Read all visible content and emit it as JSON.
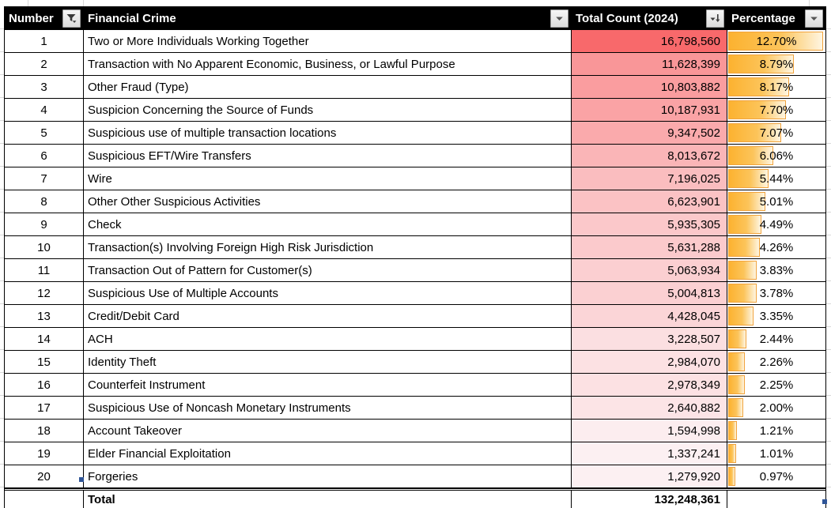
{
  "table": {
    "columns": [
      {
        "label": "Number",
        "icon": "filter-funnel-icon"
      },
      {
        "label": "Financial Crime",
        "icon": "chevron-down-icon"
      },
      {
        "label": "Total Count (2024)",
        "icon": "sort-descending-icon"
      },
      {
        "label": "Percentage",
        "icon": "chevron-down-icon"
      }
    ],
    "rows": [
      {
        "number": "1",
        "crime": "Two or More Individuals Working Together",
        "count": "16,798,560",
        "count_value": 16798560,
        "pct": "12.70%",
        "pct_value": 12.7
      },
      {
        "number": "2",
        "crime": "Transaction with No Apparent Economic, Business, or Lawful Purpose",
        "count": "11,628,399",
        "count_value": 11628399,
        "pct": "8.79%",
        "pct_value": 8.79
      },
      {
        "number": "3",
        "crime": "Other Fraud (Type)",
        "count": "10,803,882",
        "count_value": 10803882,
        "pct": "8.17%",
        "pct_value": 8.17
      },
      {
        "number": "4",
        "crime": "Suspicion Concerning the Source of Funds",
        "count": "10,187,931",
        "count_value": 10187931,
        "pct": "7.70%",
        "pct_value": 7.7
      },
      {
        "number": "5",
        "crime": "Suspicious use of multiple transaction locations",
        "count": "9,347,502",
        "count_value": 9347502,
        "pct": "7.07%",
        "pct_value": 7.07
      },
      {
        "number": "6",
        "crime": "Suspicious EFT/Wire Transfers",
        "count": "8,013,672",
        "count_value": 8013672,
        "pct": "6.06%",
        "pct_value": 6.06
      },
      {
        "number": "7",
        "crime": "Wire",
        "count": "7,196,025",
        "count_value": 7196025,
        "pct": "5.44%",
        "pct_value": 5.44
      },
      {
        "number": "8",
        "crime": "Other Other Suspicious Activities",
        "count": "6,623,901",
        "count_value": 6623901,
        "pct": "5.01%",
        "pct_value": 5.01
      },
      {
        "number": "9",
        "crime": "Check",
        "count": "5,935,305",
        "count_value": 5935305,
        "pct": "4.49%",
        "pct_value": 4.49
      },
      {
        "number": "10",
        "crime": "Transaction(s) Involving Foreign High Risk Jurisdiction",
        "count": "5,631,288",
        "count_value": 5631288,
        "pct": "4.26%",
        "pct_value": 4.26
      },
      {
        "number": "11",
        "crime": "Transaction Out of Pattern for Customer(s)",
        "count": "5,063,934",
        "count_value": 5063934,
        "pct": "3.83%",
        "pct_value": 3.83
      },
      {
        "number": "12",
        "crime": "Suspicious Use of Multiple Accounts",
        "count": "5,004,813",
        "count_value": 5004813,
        "pct": "3.78%",
        "pct_value": 3.78
      },
      {
        "number": "13",
        "crime": "Credit/Debit Card",
        "count": "4,428,045",
        "count_value": 4428045,
        "pct": "3.35%",
        "pct_value": 3.35
      },
      {
        "number": "14",
        "crime": "ACH",
        "count": "3,228,507",
        "count_value": 3228507,
        "pct": "2.44%",
        "pct_value": 2.44
      },
      {
        "number": "15",
        "crime": "Identity Theft",
        "count": "2,984,070",
        "count_value": 2984070,
        "pct": "2.26%",
        "pct_value": 2.26
      },
      {
        "number": "16",
        "crime": "Counterfeit Instrument",
        "count": "2,978,349",
        "count_value": 2978349,
        "pct": "2.25%",
        "pct_value": 2.25
      },
      {
        "number": "17",
        "crime": "Suspicious Use of Noncash Monetary Instruments",
        "count": "2,640,882",
        "count_value": 2640882,
        "pct": "2.00%",
        "pct_value": 2.0
      },
      {
        "number": "18",
        "crime": "Account Takeover",
        "count": "1,594,998",
        "count_value": 1594998,
        "pct": "1.21%",
        "pct_value": 1.21
      },
      {
        "number": "19",
        "crime": "Elder Financial Exploitation",
        "count": "1,337,241",
        "count_value": 1337241,
        "pct": "1.01%",
        "pct_value": 1.01
      },
      {
        "number": "20",
        "crime": "Forgeries",
        "count": "1,279,920",
        "count_value": 1279920,
        "pct": "0.97%",
        "pct_value": 0.97
      }
    ],
    "total": {
      "label": "Total",
      "count": "132,248,361"
    }
  },
  "colors": {
    "header_bg": "#000000",
    "header_text": "#FFFFFF",
    "count_scale_max": "#F8696B",
    "count_scale_min": "#FCF0F2",
    "bar_fill": "#FCB230",
    "bar_fill_mid": "#FCC45A",
    "bar_fill_light": "#FEF5E1",
    "bar_border": "#F1A33C",
    "selection_handle": "#2F5597"
  }
}
